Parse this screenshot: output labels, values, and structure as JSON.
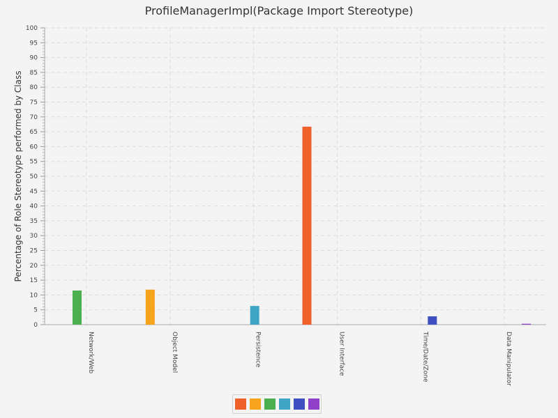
{
  "chart_data": {
    "type": "bar",
    "title": "ProfileManagerImpl(Package Import Stereotype)",
    "xlabel": "",
    "ylabel": "Percentage of Role Stereotype performed by Class",
    "ylim": [
      0,
      100
    ],
    "yticks": [
      0,
      5,
      10,
      15,
      20,
      25,
      30,
      35,
      40,
      45,
      50,
      55,
      60,
      65,
      70,
      75,
      80,
      85,
      90,
      95,
      100
    ],
    "grid": true,
    "legend_position": "bottom-center",
    "categories": [
      "Network/Web",
      "Object Model",
      "Persistence",
      "User Interface",
      "Time/Date/Zone",
      "Data Manipulator"
    ],
    "series": [
      {
        "color": "#f0602a",
        "values": [
          0,
          0,
          0,
          66.7,
          0,
          0
        ]
      },
      {
        "color": "#f8a31c",
        "values": [
          0,
          11.8,
          0,
          0,
          0,
          0
        ]
      },
      {
        "color": "#4caf50",
        "values": [
          11.5,
          0,
          0,
          0,
          0,
          0
        ]
      },
      {
        "color": "#3ea5c6",
        "values": [
          0,
          0,
          6.3,
          0,
          0,
          0
        ]
      },
      {
        "color": "#3f51c2",
        "values": [
          0,
          0,
          0,
          0,
          2.8,
          0
        ]
      },
      {
        "color": "#9040c8",
        "values": [
          0,
          0,
          0,
          0,
          0,
          0.3
        ]
      }
    ]
  }
}
